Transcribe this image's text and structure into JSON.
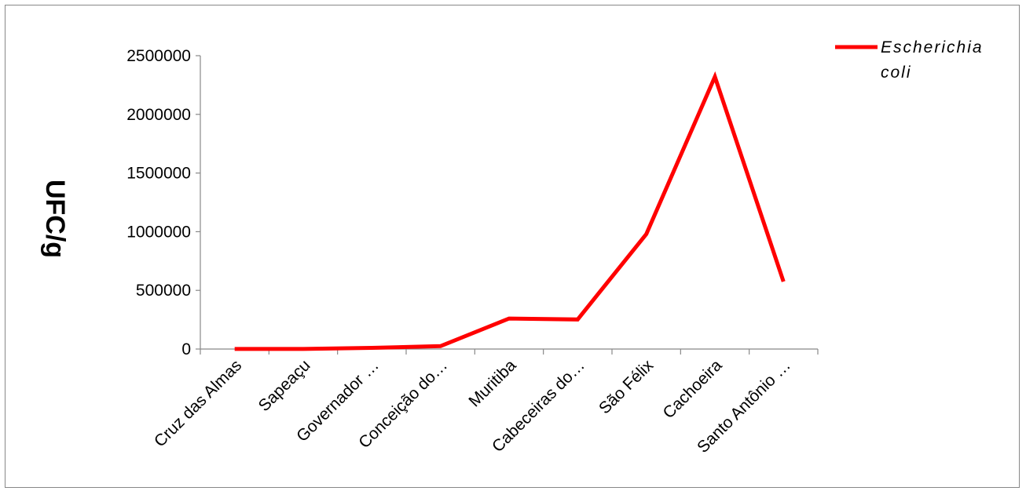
{
  "chart_data": {
    "type": "line",
    "title": "",
    "xlabel": "",
    "ylabel": "UFC/g",
    "ylim": [
      0,
      2500000
    ],
    "yticks": [
      0,
      500000,
      1000000,
      1500000,
      2000000,
      2500000
    ],
    "ytick_labels": [
      "0",
      "500000",
      "1000000",
      "1500000",
      "2000000",
      "2500000"
    ],
    "categories": [
      "Cruz das Almas",
      "Sapeaçu",
      "Governador …",
      "Conceição do…",
      "Muritiba",
      "Cabeceiras do…",
      "São Félix",
      "Cachoeira",
      "Santo Antônio …"
    ],
    "series": [
      {
        "name": "Escherichia coli",
        "legend_lines": [
          "Escherichia",
          "coli"
        ],
        "color": "#ff0000",
        "values": [
          1000,
          1000,
          10000,
          25000,
          260000,
          252000,
          980000,
          2320000,
          575000
        ]
      }
    ],
    "grid": false,
    "legend_position": "top-right"
  }
}
